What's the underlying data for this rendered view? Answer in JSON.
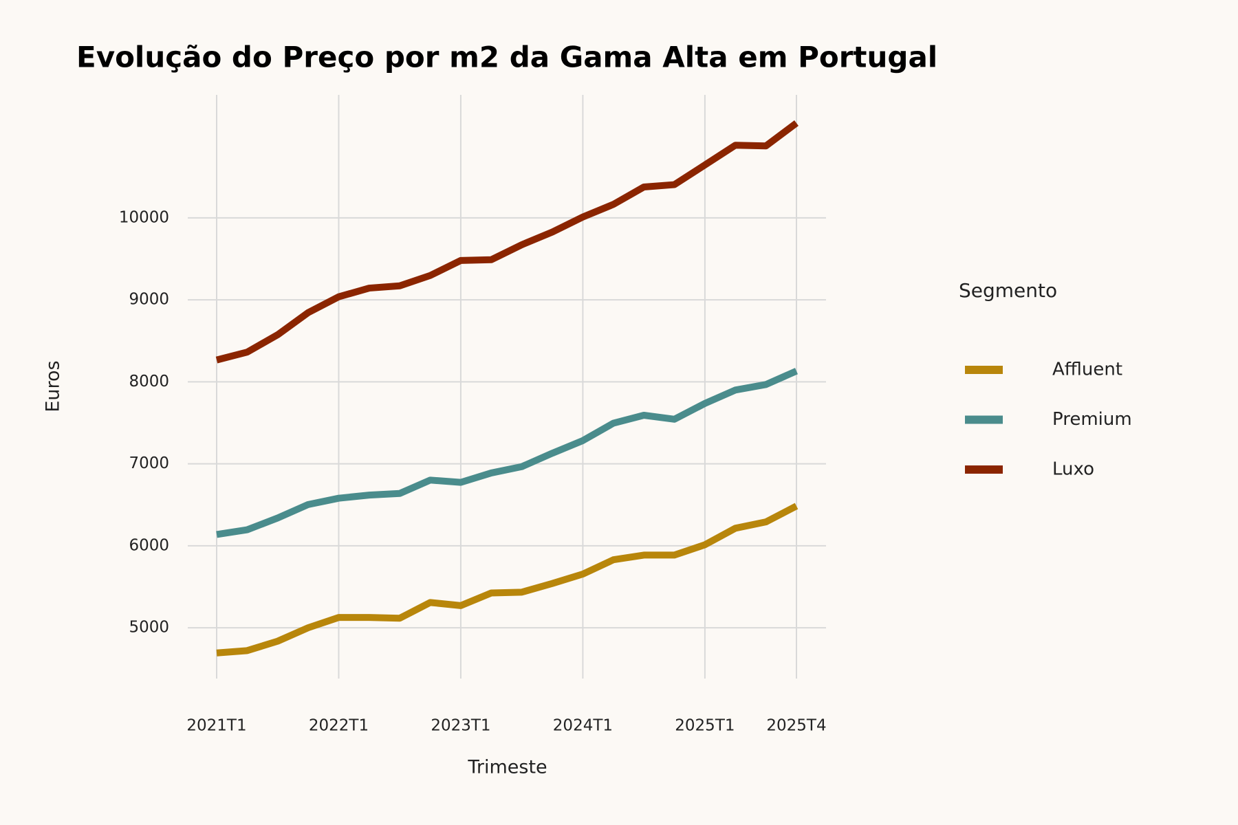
{
  "chart_data": {
    "type": "line",
    "title": "Evolução do Preço por m2 da Gama Alta em Portugal",
    "x_label": "Trimeste",
    "y_label": "Euros",
    "legend_title": "Segmento",
    "categories": [
      "2021T1",
      null,
      null,
      null,
      "2022T1",
      null,
      null,
      null,
      "2023T1",
      null,
      null,
      null,
      "2024T1",
      null,
      null,
      null,
      "2025T1",
      null,
      null,
      "2025T4"
    ],
    "series": [
      {
        "name": "Affluent",
        "color": "#b8860b",
        "values": [
          4692,
          4721,
          4836,
          5000,
          5125,
          5125,
          5116,
          5308,
          5270,
          5424,
          5434,
          5540,
          5655,
          5829,
          5886,
          5886,
          6012,
          6214,
          6291,
          6484
        ]
      },
      {
        "name": "Premium",
        "color": "#4a8c8c",
        "values": [
          6137,
          6195,
          6339,
          6503,
          6580,
          6618,
          6638,
          6801,
          6773,
          6888,
          6965,
          7129,
          7283,
          7495,
          7592,
          7543,
          7736,
          7900,
          7967,
          8131
        ]
      },
      {
        "name": "Luxo",
        "color": "#8b2500",
        "values": [
          8266,
          8362,
          8574,
          8844,
          9037,
          9143,
          9171,
          9297,
          9480,
          9489,
          9672,
          9827,
          10010,
          10164,
          10376,
          10405,
          10645,
          10886,
          10877,
          11156
        ]
      }
    ],
    "ylim": [
      4380,
      11500
    ],
    "yticks": [
      5000,
      6000,
      7000,
      8000,
      9000,
      10000
    ],
    "grid": true
  }
}
